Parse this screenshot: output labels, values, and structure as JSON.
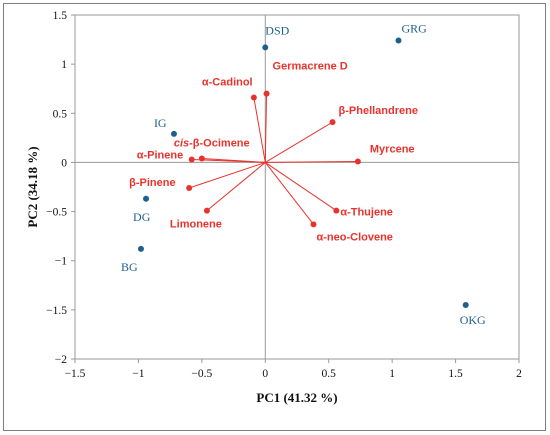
{
  "chart_data": {
    "type": "scatter",
    "xlabel": "PC1 (41.32 %)",
    "ylabel": "PC2 (34.18 %)",
    "xlim": [
      -1.5,
      2
    ],
    "ylim": [
      -2,
      1.5
    ],
    "xticks": [
      -1.5,
      -1,
      -0.5,
      0,
      0.5,
      1,
      1.5,
      2
    ],
    "yticks": [
      -2,
      -1.5,
      -1,
      -0.5,
      0,
      0.5,
      1,
      1.5
    ],
    "xtick_labels": [
      "−1.5",
      "−1",
      "−0.5",
      "0",
      "0.5",
      "1",
      "1.5",
      "2"
    ],
    "ytick_labels": [
      "−2",
      "−1.5",
      "−1",
      "−0.5",
      "0",
      "0.5",
      "1",
      "1.5"
    ],
    "grid": false,
    "colors": {
      "samples": "#1f5f8b",
      "variables": "#e8332d",
      "axes": "#9a9a9a"
    },
    "samples": [
      {
        "label": "DSD",
        "x": 0.0,
        "y": 1.17
      },
      {
        "label": "GRG",
        "x": 1.05,
        "y": 1.24
      },
      {
        "label": "IG",
        "x": -0.72,
        "y": 0.29
      },
      {
        "label": "DG",
        "x": -0.94,
        "y": -0.37
      },
      {
        "label": "BG",
        "x": -0.98,
        "y": -0.88
      },
      {
        "label": "OKG",
        "x": 1.58,
        "y": -1.45
      }
    ],
    "variables": [
      {
        "label": "α-Cadinol",
        "x": -0.09,
        "y": 0.66
      },
      {
        "label": "Germacrene D",
        "x": 0.01,
        "y": 0.7
      },
      {
        "label": "β-Phellandrene",
        "x": 0.53,
        "y": 0.41
      },
      {
        "label": "Myrcene",
        "x": 0.73,
        "y": 0.01
      },
      {
        "label": "cis-β-Ocimene",
        "x": -0.5,
        "y": 0.04
      },
      {
        "label": "α-Pinene",
        "x": -0.58,
        "y": 0.03
      },
      {
        "label": "β-Pinene",
        "x": -0.6,
        "y": -0.26
      },
      {
        "label": "Limonene",
        "x": -0.46,
        "y": -0.49
      },
      {
        "label": "α-Thujene",
        "x": 0.56,
        "y": -0.49
      },
      {
        "label": "α-neo-Clovene",
        "x": 0.38,
        "y": -0.63
      }
    ]
  }
}
